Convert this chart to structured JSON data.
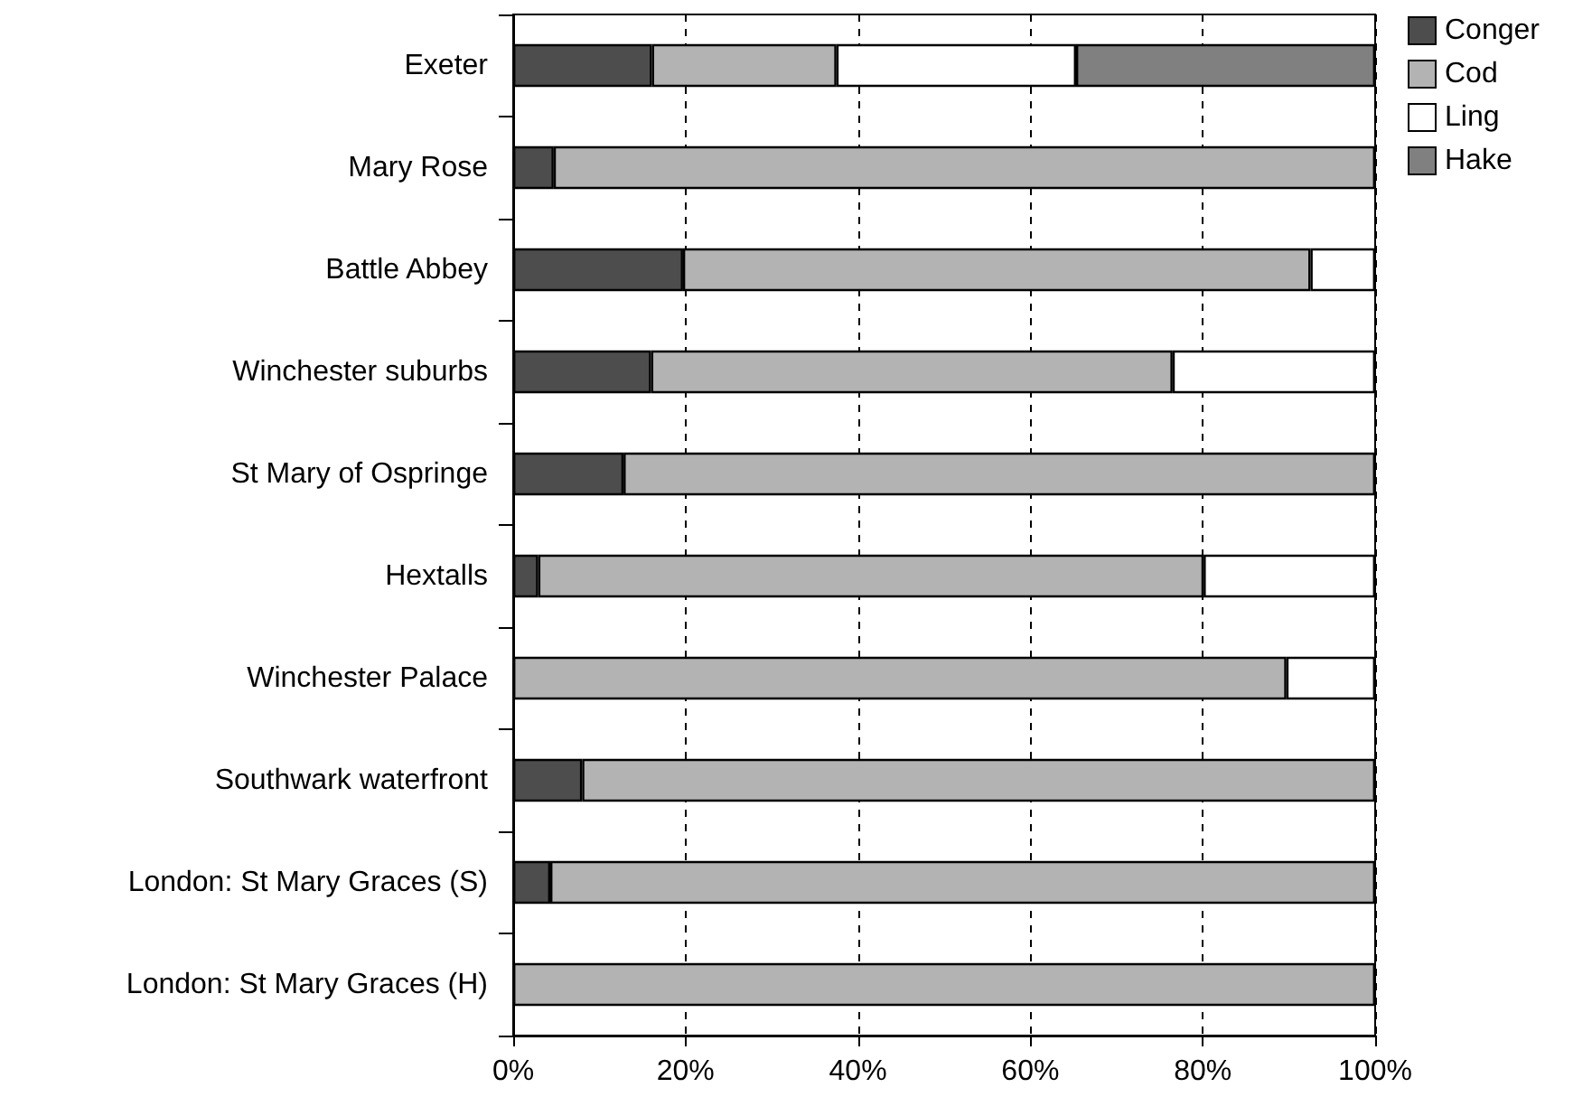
{
  "chart_data": {
    "type": "bar",
    "orientation": "horizontal",
    "stacked": true,
    "categories": [
      "Exeter",
      "Mary Rose",
      "Battle Abbey",
      "Winchester suburbs",
      "St Mary of Ospringe",
      "Hextalls",
      "Winchester Palace",
      "Southwark waterfront",
      "London: St Mary Graces (S)",
      "London: St Mary Graces (H)"
    ],
    "series": [
      {
        "name": "Conger",
        "color": "#4d4d4d",
        "values": [
          16.1,
          4.7,
          19.7,
          16.0,
          12.8,
          2.9,
          null,
          8.0,
          4.3,
          null
        ]
      },
      {
        "name": "Cod",
        "color": "#b3b3b3",
        "values": [
          21.4,
          95.3,
          72.8,
          60.5,
          87.2,
          77.2,
          89.7,
          92.0,
          95.7,
          100
        ]
      },
      {
        "name": "Ling",
        "color": "#ffffff",
        "values": [
          27.8,
          null,
          7.5,
          23.5,
          null,
          19.9,
          10.3,
          null,
          null,
          null
        ]
      },
      {
        "name": "Hake",
        "color": "#808080",
        "values": [
          34.7,
          null,
          null,
          null,
          null,
          null,
          null,
          null,
          null,
          null
        ]
      }
    ],
    "xlim": [
      0,
      100
    ],
    "xticks": [
      {
        "value": 0,
        "label": "0%"
      },
      {
        "value": 20,
        "label": "20%"
      },
      {
        "value": 40,
        "label": "40%"
      },
      {
        "value": 60,
        "label": "60%"
      },
      {
        "value": 80,
        "label": "80%"
      },
      {
        "value": 100,
        "label": "100%"
      }
    ],
    "grid": "x",
    "legend": "top right"
  }
}
